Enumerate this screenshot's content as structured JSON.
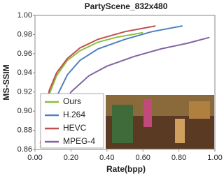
{
  "chart_data": {
    "type": "line",
    "title": "PartyScene_832x480",
    "x_label": "Rate(bpp)",
    "y_label": "MS-SSIM",
    "xlim": [
      0,
      1
    ],
    "ylim": [
      0.86,
      1
    ],
    "xticks": [
      {
        "value": 0,
        "label": "0.00"
      },
      {
        "value": 0.2,
        "label": "0.20"
      },
      {
        "value": 0.4,
        "label": "0.40"
      },
      {
        "value": 0.6,
        "label": "0.60"
      },
      {
        "value": 0.8,
        "label": "0.80"
      },
      {
        "value": 1,
        "label": "1.00"
      }
    ],
    "yticks": [
      0.86,
      0.88,
      {
        "value": 0.9,
        "label": "0.90"
      },
      0.92,
      0.94,
      0.96,
      0.98,
      {
        "value": 1,
        "label": "1.00"
      }
    ],
    "grid": false,
    "legend": "lower-left",
    "series": [
      {
        "name": "Ours",
        "color": "#8cbf3f",
        "x": [
          0.03,
          0.05,
          0.08,
          0.12,
          0.18,
          0.25,
          0.35,
          0.45,
          0.6
        ],
        "values": [
          0.862,
          0.89,
          0.918,
          0.937,
          0.953,
          0.963,
          0.972,
          0.977,
          0.982
        ]
      },
      {
        "name": "H.264",
        "color": "#4f81bd",
        "x": [
          0.05,
          0.08,
          0.12,
          0.18,
          0.25,
          0.35,
          0.5,
          0.65,
          0.82
        ],
        "values": [
          0.865,
          0.89,
          0.915,
          0.938,
          0.953,
          0.965,
          0.975,
          0.983,
          0.989
        ]
      },
      {
        "name": "HEVC",
        "color": "#c0504d",
        "x": [
          0.03,
          0.05,
          0.08,
          0.12,
          0.18,
          0.25,
          0.35,
          0.5,
          0.67
        ],
        "values": [
          0.866,
          0.895,
          0.922,
          0.94,
          0.955,
          0.966,
          0.975,
          0.983,
          0.989
        ]
      },
      {
        "name": "MPEG-4",
        "color": "#8064a2",
        "x": [
          0.11,
          0.15,
          0.2,
          0.3,
          0.4,
          0.55,
          0.7,
          0.85,
          0.97
        ],
        "values": [
          0.883,
          0.903,
          0.92,
          0.937,
          0.947,
          0.957,
          0.965,
          0.971,
          0.977
        ]
      }
    ]
  }
}
